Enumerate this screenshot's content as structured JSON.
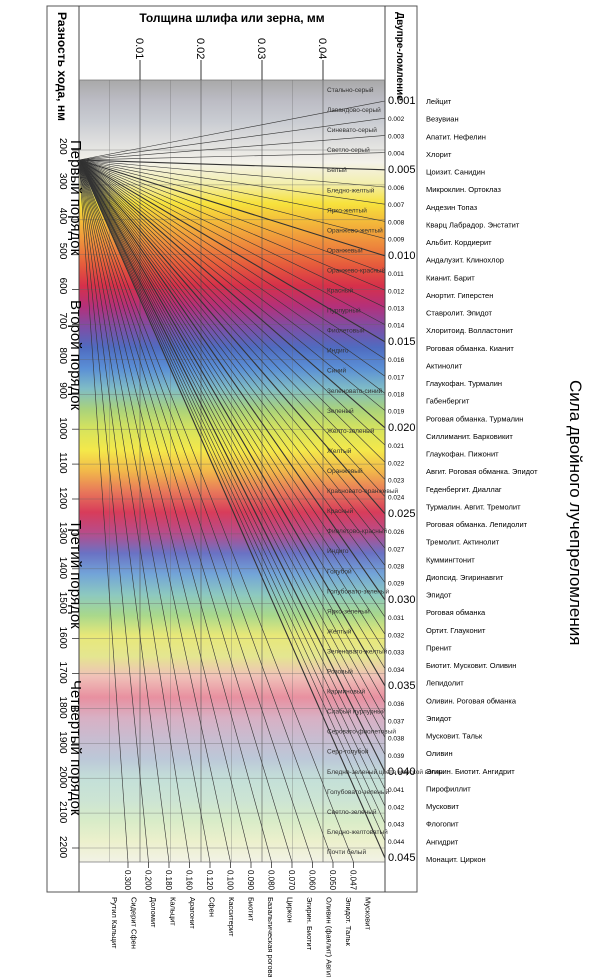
{
  "left_header": "Разность хода, нм",
  "top_header": "Толщина шлифа или зерна, мм",
  "right_header": "Двупре-ломление",
  "side_title": "Сила двойного лучепреломления",
  "orders": [
    "Первый порядок",
    "Второй порядок",
    "Третий порядок",
    "Четвертый порядок"
  ],
  "thickness_ticks": [
    "0.01",
    "0.02",
    "0.03",
    "0.04"
  ],
  "retardation_ticks": [
    "200",
    "300",
    "400",
    "500",
    "600",
    "700",
    "800",
    "900",
    "1000",
    "1100",
    "1200",
    "1300",
    "1400",
    "1500",
    "1600",
    "1700",
    "1800",
    "1900",
    "2000",
    "2100",
    "2200"
  ],
  "colors": [
    {
      "name": "Стально-серый",
      "hex": "#a9a9a9"
    },
    {
      "name": "Лавандово-серый",
      "hex": "#bcbcc4"
    },
    {
      "name": "Синевато-серый",
      "hex": "#c9ccd2"
    },
    {
      "name": "Светло-серый",
      "hex": "#dedede"
    },
    {
      "name": "Белый",
      "hex": "#f4f2ea"
    },
    {
      "name": "Бледно-желтый",
      "hex": "#f3efb0"
    },
    {
      "name": "Ярко-желтый",
      "hex": "#f7e23c"
    },
    {
      "name": "Оранжево-желтый",
      "hex": "#f3b53a"
    },
    {
      "name": "Оранжевый",
      "hex": "#ee8a3c"
    },
    {
      "name": "Оранжево-красный",
      "hex": "#e65a3c"
    },
    {
      "name": "Красный",
      "hex": "#d6304a"
    },
    {
      "name": "Пурпурный",
      "hex": "#b4307a"
    },
    {
      "name": "Фиолетовый",
      "hex": "#7e4ea6"
    },
    {
      "name": "Индиго",
      "hex": "#4f6bc0"
    },
    {
      "name": "Синий",
      "hex": "#5a8fd6"
    },
    {
      "name": "Зеленовато-синий",
      "hex": "#7fbcc6"
    },
    {
      "name": "Зеленый",
      "hex": "#a9d27c"
    },
    {
      "name": "Желто-зеленый",
      "hex": "#d8e45c"
    },
    {
      "name": "Желтый",
      "hex": "#f4e84a"
    },
    {
      "name": "Оранжевый",
      "hex": "#f2b84a"
    },
    {
      "name": "Красновато-оранжевый",
      "hex": "#e8785a"
    },
    {
      "name": "Красный",
      "hex": "#d83c5a"
    },
    {
      "name": "Фиолетово-красный",
      "hex": "#b84c8a"
    },
    {
      "name": "Индиго",
      "hex": "#6a72c4"
    },
    {
      "name": "Голубой",
      "hex": "#72a4d8"
    },
    {
      "name": "Голубовато-зеленый",
      "hex": "#8cc8c0"
    },
    {
      "name": "Ярко-зеленый",
      "hex": "#a8d88c"
    },
    {
      "name": "Желтый",
      "hex": "#e8e878"
    },
    {
      "name": "Зеленовато-желтый",
      "hex": "#e4e690"
    },
    {
      "name": "Розовый",
      "hex": "#f0c0b8"
    },
    {
      "name": "Карминовый",
      "hex": "#e890a0"
    },
    {
      "name": "Слабый пурпурный",
      "hex": "#d8b0c4"
    },
    {
      "name": "Серовато-фиолетовый",
      "hex": "#c8bcd0"
    },
    {
      "name": "Серо-голубой",
      "hex": "#bcc8d8"
    },
    {
      "name": "Бледно-зеленый цвета морской волны",
      "hex": "#c4e0d8"
    },
    {
      "name": "Голубовато-зеленый",
      "hex": "#cce4d4"
    },
    {
      "name": "Светло-зеленый",
      "hex": "#d8ecc8"
    },
    {
      "name": "Бледно-желтоватый",
      "hex": "#ecf0cc"
    },
    {
      "name": "Почти белый",
      "hex": "#f2f2e6"
    }
  ],
  "birefringence_labels": [
    "0.001",
    "0.002",
    "0.003",
    "0.004",
    "0.005",
    "0.006",
    "0.007",
    "0.008",
    "0.009",
    "0.010",
    "0.011",
    "0.012",
    "0.013",
    "0.014",
    "0.015",
    "0.016",
    "0.017",
    "0.018",
    "0.019",
    "0.020",
    "0.021",
    "0.022",
    "0.023",
    "0.024",
    "0.025",
    "0.026",
    "0.027",
    "0.028",
    "0.029",
    "0.030",
    "0.031",
    "0.032",
    "0.033",
    "0.034",
    "0.035",
    "0.036",
    "0.037",
    "0.038",
    "0.039",
    "0.040",
    "0.041",
    "0.042",
    "0.043",
    "0.044",
    "0.045"
  ],
  "minerals": [
    {
      "text": "Лейцит"
    },
    {
      "text": "Везувиан"
    },
    {
      "text": "Апатит. Нефелин"
    },
    {
      "text": "Хлорит"
    },
    {
      "text": "Цоизит. Санидин"
    },
    {
      "text": "Микроклин. Ортоклаз"
    },
    {
      "text": "Андезин Топаз"
    },
    {
      "text": "Кварц Лабрадор. Энстатит"
    },
    {
      "text": "Альбит. Кордиерит"
    },
    {
      "text": "Андалузит. Клинохлор"
    },
    {
      "text": "Кианит. Барит"
    },
    {
      "text": "Анортит. Гиперстен"
    },
    {
      "text": "Ставролит. Эпидот"
    },
    {
      "text": "Хлоритоид. Волластонит"
    },
    {
      "text": "Роговая обманка. Кианит"
    },
    {
      "text": "Актинолит"
    },
    {
      "text": "Глаукофан. Турмалин"
    },
    {
      "text": "Габенбергит"
    },
    {
      "text": "Роговая обманка. Турмалин"
    },
    {
      "text": "Силлиманит. Барковикит"
    },
    {
      "text": "Глаукофан. Пижонит"
    },
    {
      "text": "Авгит. Роговая обманка. Эпидот"
    },
    {
      "text": "Геденбергит. Диаллаг"
    },
    {
      "text": "Турмалин. Авгит. Тремолит"
    },
    {
      "text": "Роговая обманка. Лепидолит"
    },
    {
      "text": "Тремолит. Актинолит"
    },
    {
      "text": "Куммингтонит"
    },
    {
      "text": "Диопсид. Эгиринавгит"
    },
    {
      "text": "Эпидот"
    },
    {
      "text": "Роговая обманка"
    },
    {
      "text": "Ортит. Глауконит"
    },
    {
      "text": "Пренит"
    },
    {
      "text": "Биотит. Мусковит. Оливин"
    },
    {
      "text": "Лепидолит"
    },
    {
      "text": "Оливин. Роговая обманка"
    },
    {
      "text": "Эпидот"
    },
    {
      "text": "Мусковит. Тальк"
    },
    {
      "text": "Оливин"
    },
    {
      "text": "Эгирин. Биотит. Ангидрит"
    },
    {
      "text": "Пирофиллит"
    },
    {
      "text": "Мусковит"
    },
    {
      "text": "Флогопит"
    },
    {
      "text": "Ангидрит"
    },
    {
      "text": "Монацит. Циркон"
    }
  ],
  "bottom_values": [
    "0.300",
    "0.200",
    "0.180",
    "0.160",
    "0.120",
    "0.100",
    "0.090",
    "0.080",
    "0.070",
    "0.060",
    "0.050",
    "0.047"
  ],
  "bottom_minerals": [
    {
      "text": "Рутил Кальцит"
    },
    {
      "text": "Сидерит Сфен"
    },
    {
      "text": "Доломит"
    },
    {
      "text": "Кальцит"
    },
    {
      "text": "Арагонит"
    },
    {
      "text": "Сфен"
    },
    {
      "text": "Касситерит"
    },
    {
      "text": "Биотит"
    },
    {
      "text": "Базальтическая роговая обманка"
    },
    {
      "text": "Циркон"
    },
    {
      "text": "Эгирин. Биотит"
    },
    {
      "text": "Оливин (фаялит) Авгит"
    },
    {
      "text": "Эпидот. Тальк"
    },
    {
      "text": "Мусковит"
    }
  ]
}
